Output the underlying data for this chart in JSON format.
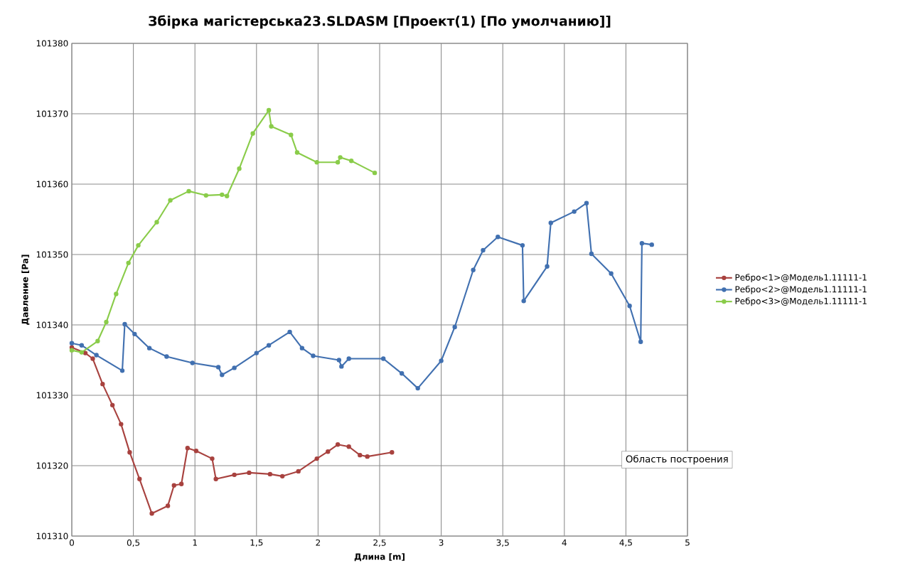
{
  "chart_data": {
    "type": "line",
    "title": "Збірка магістерська23.SLDASM  [Проект(1) [По умолчанию]]",
    "xlabel": "Длина [m]",
    "ylabel": "Давление [Pa]",
    "annotations": [
      "Область построения"
    ],
    "xlim": [
      0,
      5
    ],
    "ylim": [
      101310,
      101380
    ],
    "xticks": [
      0,
      {
        "value": 0.5,
        "label": "0,5"
      },
      1,
      {
        "value": 1.5,
        "label": "1,5"
      },
      2,
      {
        "value": 2.5,
        "label": "2,5"
      },
      3,
      {
        "value": 3.5,
        "label": "3,5"
      },
      4,
      {
        "value": 4.5,
        "label": "4,5"
      },
      5
    ],
    "yticks": [
      101310,
      101320,
      101330,
      101340,
      101350,
      101360,
      101370,
      101380
    ],
    "grid": true,
    "legend": "right",
    "marker": "circle",
    "series": [
      {
        "name": "Ребро<1>@Модель1.11111-1",
        "color": "#a8423f",
        "x": [
          0,
          0.11,
          0.17,
          0.25,
          0.33,
          0.4,
          0.47,
          0.55,
          0.65,
          0.78,
          0.83,
          0.89,
          0.94,
          1.01,
          1.14,
          1.17,
          1.32,
          1.44,
          1.61,
          1.71,
          1.84,
          1.99,
          2.08,
          2.16,
          2.25,
          2.34,
          2.4,
          2.6
        ],
        "values": [
          101336.8,
          101336,
          101335.2,
          101331.6,
          101328.6,
          101325.9,
          101321.9,
          101318.1,
          101313.2,
          101314.3,
          101317.2,
          101317.4,
          101322.5,
          101322.1,
          101321,
          101318.1,
          101318.7,
          101319,
          101318.8,
          101318.5,
          101319.2,
          101321,
          101322,
          101323,
          101322.7,
          101321.5,
          101321.3,
          101321.9
        ]
      },
      {
        "name": "Ребро<2>@Модель1.11111-1",
        "color": "#4170b0",
        "x": [
          0,
          0.08,
          0.2,
          0.41,
          0.43,
          0.51,
          0.63,
          0.77,
          0.98,
          1.19,
          1.22,
          1.32,
          1.5,
          1.6,
          1.77,
          1.87,
          1.96,
          2.17,
          2.19,
          2.25,
          2.53,
          2.68,
          2.81,
          3.0,
          3.11,
          3.26,
          3.34,
          3.46,
          3.66,
          3.67,
          3.86,
          3.89,
          4.08,
          4.18,
          4.22,
          4.38,
          4.53,
          4.62,
          4.63,
          4.71
        ],
        "values": [
          101337.4,
          101337.1,
          101335.7,
          101333.5,
          101340.1,
          101338.7,
          101336.7,
          101335.5,
          101334.6,
          101334,
          101332.9,
          101333.9,
          101336,
          101337.1,
          101339,
          101336.7,
          101335.6,
          101335,
          101334.1,
          101335.2,
          101335.2,
          101333.1,
          101331,
          101334.9,
          101339.7,
          101347.8,
          101350.6,
          101352.5,
          101351.3,
          101343.4,
          101348.3,
          101354.5,
          101356.1,
          101357.3,
          101350.1,
          101347.3,
          101342.7,
          101337.6,
          101351.6,
          101351.4
        ]
      },
      {
        "name": "Ребро<3>@Модель1.11111-1",
        "color": "#8acc4a",
        "x": [
          0,
          0.08,
          0.21,
          0.28,
          0.36,
          0.46,
          0.54,
          0.69,
          0.8,
          0.95,
          1.09,
          1.22,
          1.26,
          1.36,
          1.47,
          1.6,
          1.62,
          1.78,
          1.83,
          1.99,
          2.16,
          2.18,
          2.27,
          2.46
        ],
        "values": [
          101336.4,
          101336.1,
          101337.7,
          101340.4,
          101344.4,
          101348.8,
          101351.3,
          101354.6,
          101357.7,
          101359,
          101358.4,
          101358.5,
          101358.3,
          101362.2,
          101367.2,
          101370.5,
          101368.2,
          101367,
          101364.5,
          101363.1,
          101363.1,
          101363.8,
          101363.3,
          101361.6
        ]
      }
    ]
  }
}
